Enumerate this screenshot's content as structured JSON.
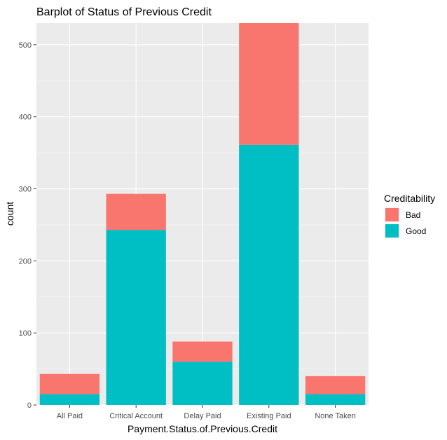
{
  "chart_data": {
    "type": "bar",
    "stacked": true,
    "title": "Barplot of Status of Previous Credit",
    "xlabel": "Payment.Status.of.Previous.Credit",
    "ylabel": "count",
    "categories": [
      "All Paid",
      "Critical Account",
      "Delay Paid",
      "Existing Paid",
      "None Taken"
    ],
    "series": [
      {
        "name": "Good",
        "color": "#00BFC4",
        "values": [
          15,
          243,
          60,
          361,
          15
        ]
      },
      {
        "name": "Bad",
        "color": "#F8766D",
        "values": [
          28,
          50,
          28,
          169,
          25
        ]
      }
    ],
    "ylim": [
      0,
      530
    ],
    "yticks": [
      0,
      100,
      200,
      300,
      400,
      500
    ],
    "grid": true,
    "legend": {
      "title": "Creditability",
      "position": "right",
      "items": [
        "Bad",
        "Good"
      ]
    }
  }
}
